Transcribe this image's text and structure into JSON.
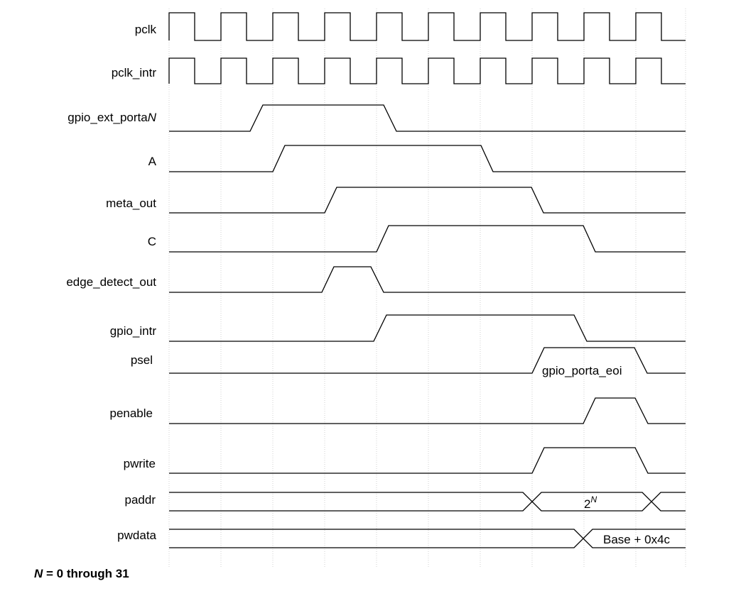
{
  "signals": [
    {
      "id": "pclk",
      "label": "pclk"
    },
    {
      "id": "pclk_intr",
      "label": "pclk_intr"
    },
    {
      "id": "gpio_ext_porta",
      "label": "gpio_ext_porta",
      "label_suffix": "N"
    },
    {
      "id": "A",
      "label": "A"
    },
    {
      "id": "meta_out",
      "label": "meta_out"
    },
    {
      "id": "C",
      "label": "C"
    },
    {
      "id": "edge_detect_out",
      "label": "edge_detect_out"
    },
    {
      "id": "gpio_intr",
      "label": "gpio_intr"
    },
    {
      "id": "psel",
      "label": "psel",
      "annotation": "gpio_porta_eoi"
    },
    {
      "id": "penable",
      "label": "penable"
    },
    {
      "id": "pwrite",
      "label": "pwrite"
    },
    {
      "id": "paddr",
      "label": "paddr",
      "value_base": "2",
      "value_sup": "N"
    },
    {
      "id": "pwdata",
      "label": "pwdata",
      "value": "Base + 0x4c"
    }
  ],
  "footnote": {
    "var": "N",
    "text": " = 0 through 31"
  }
}
